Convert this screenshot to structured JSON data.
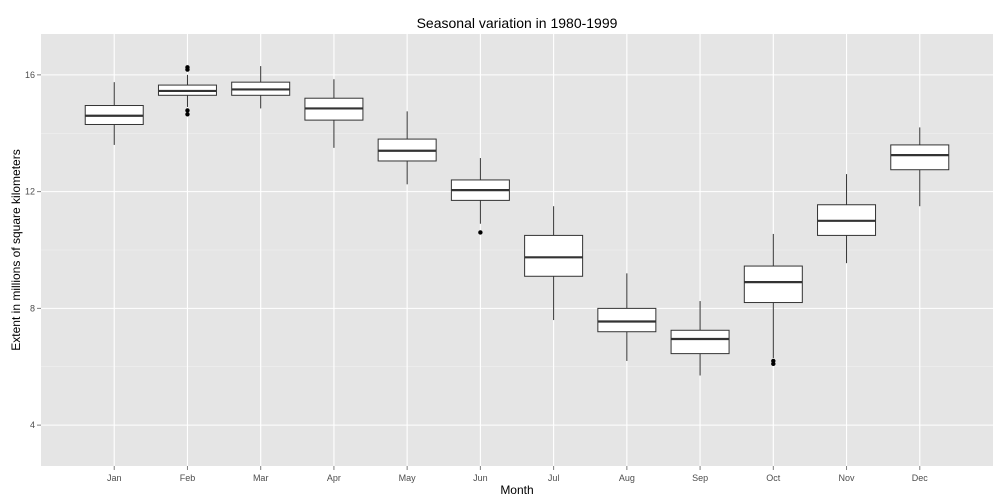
{
  "chart_data": {
    "type": "box",
    "title": "Seasonal variation in 1980-1999",
    "xlabel": "Month",
    "ylabel": "Extent in millions of square kilometers",
    "ylim": [
      2.6,
      17.4
    ],
    "yticks": [
      4,
      8,
      12,
      16
    ],
    "ytick_labels": [
      "4",
      "8",
      "12",
      "16"
    ],
    "grid": true,
    "legend": "none",
    "colors": {
      "panel_bg": "#e5e5e5",
      "grid_major": "#ffffff",
      "grid_minor": "#f2f2f2",
      "box_fill": "#ffffff",
      "box_line": "#333333",
      "outlier": "#000000"
    },
    "categories": [
      "Jan",
      "Feb",
      "Mar",
      "Apr",
      "May",
      "Jun",
      "Jul",
      "Aug",
      "Sep",
      "Oct",
      "Nov",
      "Dec"
    ],
    "boxes": [
      {
        "month": "Jan",
        "min": 13.6,
        "q1": 14.3,
        "median": 14.6,
        "q3": 14.95,
        "max": 15.75,
        "outliers": []
      },
      {
        "month": "Feb",
        "min": 14.9,
        "q1": 15.3,
        "median": 15.45,
        "q3": 15.65,
        "max": 16.0,
        "outliers": [
          14.65,
          14.78,
          16.18,
          16.26
        ]
      },
      {
        "month": "Mar",
        "min": 14.85,
        "q1": 15.3,
        "median": 15.5,
        "q3": 15.75,
        "max": 16.3,
        "outliers": []
      },
      {
        "month": "Apr",
        "min": 13.5,
        "q1": 14.45,
        "median": 14.85,
        "q3": 15.2,
        "max": 15.85,
        "outliers": []
      },
      {
        "month": "May",
        "min": 12.25,
        "q1": 13.05,
        "median": 13.4,
        "q3": 13.8,
        "max": 14.75,
        "outliers": []
      },
      {
        "month": "Jun",
        "min": 10.9,
        "q1": 11.7,
        "median": 12.05,
        "q3": 12.4,
        "max": 13.15,
        "outliers": [
          10.6
        ]
      },
      {
        "month": "Jul",
        "min": 7.6,
        "q1": 9.1,
        "median": 9.75,
        "q3": 10.5,
        "max": 11.5,
        "outliers": []
      },
      {
        "month": "Aug",
        "min": 6.2,
        "q1": 7.2,
        "median": 7.55,
        "q3": 8.0,
        "max": 9.2,
        "outliers": []
      },
      {
        "month": "Sep",
        "min": 5.7,
        "q1": 6.45,
        "median": 6.95,
        "q3": 7.25,
        "max": 8.25,
        "outliers": []
      },
      {
        "month": "Oct",
        "min": 6.3,
        "q1": 8.2,
        "median": 8.9,
        "q3": 9.45,
        "max": 10.55,
        "outliers": [
          6.1,
          6.2
        ]
      },
      {
        "month": "Nov",
        "min": 9.55,
        "q1": 10.5,
        "median": 11.0,
        "q3": 11.55,
        "max": 12.6,
        "outliers": []
      },
      {
        "month": "Dec",
        "min": 11.5,
        "q1": 12.75,
        "median": 13.25,
        "q3": 13.6,
        "max": 14.2,
        "outliers": []
      }
    ]
  }
}
